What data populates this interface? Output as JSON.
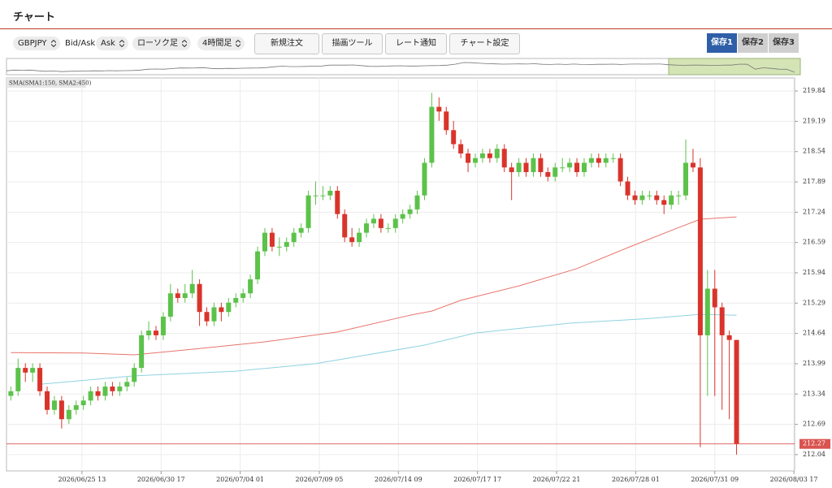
{
  "header": {
    "title": "チャート"
  },
  "toolbar": {
    "symbol": "GBPJPY",
    "price_side_label": "Bid/Ask",
    "price_side": "Ask",
    "chart_kind": "ローソク足",
    "timeframe": "4時間足",
    "buttons": [
      "新規注文",
      "描画ツール",
      "レート通知",
      "チャート設定"
    ],
    "saves": [
      "保存1",
      "保存2",
      "保存3"
    ],
    "active_save": 0
  },
  "chart_data": {
    "type": "candlestick",
    "indicator_label": "SMA(SMA1:150, SMA2:450)",
    "up_color": "#5cc24a",
    "down_color": "#d9342b",
    "grid": true,
    "last_price": 212.27,
    "last_price_color": "#d9534f",
    "ylim": [
      211.69,
      220.12
    ],
    "yticks": [
      212.04,
      212.69,
      213.34,
      213.99,
      214.64,
      215.29,
      215.94,
      216.59,
      217.24,
      217.89,
      218.54,
      219.19,
      219.84
    ],
    "xlim": [
      -0.1,
      108.5
    ],
    "xticks": [
      {
        "value": 10.3,
        "label": "2026/06/25 13"
      },
      {
        "value": 21.2,
        "label": "2026/06/30 17"
      },
      {
        "value": 32.1,
        "label": "2026/07/04 01"
      },
      {
        "value": 43,
        "label": "2026/07/09 05"
      },
      {
        "value": 53.9,
        "label": "2026/07/14 09"
      },
      {
        "value": 64.8,
        "label": "2026/07/17 17"
      },
      {
        "value": 75.7,
        "label": "2026/07/22 21"
      },
      {
        "value": 86.6,
        "label": "2026/07/28 01"
      },
      {
        "value": 97.5,
        "label": "2026/07/31 09"
      },
      {
        "value": 108.4,
        "label": "2026/08/03 17"
      }
    ],
    "candles": [
      [
        213.3,
        213.5,
        213.2,
        213.4
      ],
      [
        213.4,
        214.1,
        213.3,
        213.9
      ],
      [
        213.9,
        214.0,
        213.6,
        213.8
      ],
      [
        213.8,
        214.0,
        213.6,
        213.9
      ],
      [
        213.9,
        214.0,
        213.3,
        213.4
      ],
      [
        213.4,
        213.5,
        212.9,
        213.0
      ],
      [
        213.0,
        213.3,
        212.9,
        213.2
      ],
      [
        213.2,
        213.3,
        212.6,
        212.8
      ],
      [
        212.8,
        213.1,
        212.7,
        213.0
      ],
      [
        213.0,
        213.2,
        212.9,
        213.1
      ],
      [
        213.1,
        213.3,
        213.0,
        213.2
      ],
      [
        213.2,
        213.5,
        213.1,
        213.4
      ],
      [
        213.4,
        213.5,
        213.2,
        213.3
      ],
      [
        213.3,
        213.6,
        213.2,
        213.5
      ],
      [
        213.5,
        213.6,
        213.3,
        213.4
      ],
      [
        213.4,
        213.6,
        213.3,
        213.5
      ],
      [
        213.5,
        213.7,
        213.4,
        213.6
      ],
      [
        213.6,
        214.0,
        213.5,
        213.9
      ],
      [
        213.9,
        214.7,
        213.8,
        214.6
      ],
      [
        214.6,
        214.9,
        214.5,
        214.7
      ],
      [
        214.7,
        214.8,
        214.5,
        214.6
      ],
      [
        214.6,
        215.1,
        214.5,
        215.0
      ],
      [
        215.0,
        215.7,
        214.9,
        215.5
      ],
      [
        215.5,
        215.6,
        215.3,
        215.4
      ],
      [
        215.4,
        215.7,
        215.3,
        215.5
      ],
      [
        215.5,
        216.0,
        215.4,
        215.7
      ],
      [
        215.7,
        215.8,
        214.8,
        215.1
      ],
      [
        215.1,
        215.2,
        214.8,
        214.9
      ],
      [
        214.9,
        215.3,
        214.8,
        215.2
      ],
      [
        215.2,
        215.3,
        214.9,
        215.1
      ],
      [
        215.1,
        215.4,
        215.0,
        215.3
      ],
      [
        215.3,
        215.5,
        215.2,
        215.4
      ],
      [
        215.4,
        215.6,
        215.3,
        215.5
      ],
      [
        215.5,
        215.9,
        215.4,
        215.8
      ],
      [
        215.8,
        216.5,
        215.7,
        216.4
      ],
      [
        216.4,
        216.9,
        216.3,
        216.8
      ],
      [
        216.8,
        216.9,
        216.4,
        216.5
      ],
      [
        216.5,
        216.7,
        216.3,
        216.5
      ],
      [
        216.5,
        216.7,
        216.4,
        216.6
      ],
      [
        216.6,
        216.9,
        216.5,
        216.8
      ],
      [
        216.8,
        217.0,
        216.7,
        216.9
      ],
      [
        216.9,
        217.7,
        216.8,
        217.6
      ],
      [
        217.6,
        217.9,
        217.4,
        217.6
      ],
      [
        217.6,
        217.8,
        217.5,
        217.6
      ],
      [
        217.6,
        217.8,
        217.5,
        217.7
      ],
      [
        217.7,
        217.8,
        217.1,
        217.2
      ],
      [
        217.2,
        217.3,
        216.6,
        216.7
      ],
      [
        216.7,
        216.9,
        216.5,
        216.6
      ],
      [
        216.6,
        216.9,
        216.5,
        216.8
      ],
      [
        216.8,
        217.1,
        216.7,
        217.0
      ],
      [
        217.0,
        217.2,
        216.9,
        217.1
      ],
      [
        217.1,
        217.2,
        216.8,
        216.9
      ],
      [
        216.9,
        217.0,
        216.8,
        216.9
      ],
      [
        216.9,
        217.2,
        216.8,
        217.1
      ],
      [
        217.1,
        217.3,
        217.0,
        217.2
      ],
      [
        217.2,
        217.4,
        217.1,
        217.3
      ],
      [
        217.3,
        217.7,
        217.2,
        217.6
      ],
      [
        217.6,
        218.4,
        217.5,
        218.3
      ],
      [
        218.3,
        219.8,
        218.2,
        219.5
      ],
      [
        219.5,
        219.7,
        219.2,
        219.4
      ],
      [
        219.4,
        219.5,
        218.9,
        219.0
      ],
      [
        219.0,
        219.2,
        218.6,
        218.7
      ],
      [
        218.7,
        218.8,
        218.4,
        218.5
      ],
      [
        218.5,
        218.6,
        218.1,
        218.3
      ],
      [
        218.3,
        218.5,
        218.2,
        218.4
      ],
      [
        218.4,
        218.6,
        218.3,
        218.5
      ],
      [
        218.5,
        218.6,
        218.3,
        218.4
      ],
      [
        218.4,
        218.7,
        218.3,
        218.6
      ],
      [
        218.6,
        218.7,
        218.1,
        218.2
      ],
      [
        218.2,
        218.3,
        217.5,
        218.1
      ],
      [
        218.1,
        218.4,
        218.0,
        218.3
      ],
      [
        218.3,
        218.4,
        218.0,
        218.1
      ],
      [
        218.1,
        218.5,
        218.0,
        218.4
      ],
      [
        218.4,
        218.5,
        218.0,
        218.1
      ],
      [
        218.1,
        218.2,
        217.9,
        218.0
      ],
      [
        218.0,
        218.3,
        217.9,
        218.2
      ],
      [
        218.2,
        218.4,
        218.1,
        218.2
      ],
      [
        218.2,
        218.4,
        218.1,
        218.3
      ],
      [
        218.3,
        218.4,
        218.0,
        218.1
      ],
      [
        218.1,
        218.4,
        218.0,
        218.3
      ],
      [
        218.3,
        218.5,
        218.2,
        218.4
      ],
      [
        218.4,
        218.5,
        218.2,
        218.3
      ],
      [
        218.3,
        218.5,
        218.2,
        218.4
      ],
      [
        218.4,
        218.5,
        218.3,
        218.4
      ],
      [
        218.4,
        218.5,
        217.8,
        217.9
      ],
      [
        217.9,
        218.0,
        217.5,
        217.6
      ],
      [
        217.6,
        217.7,
        217.4,
        217.5
      ],
      [
        217.5,
        217.7,
        217.4,
        217.6
      ],
      [
        217.6,
        217.7,
        217.5,
        217.6
      ],
      [
        217.6,
        217.7,
        217.4,
        217.5
      ],
      [
        217.5,
        217.6,
        217.2,
        217.4
      ],
      [
        217.4,
        217.7,
        217.3,
        217.6
      ],
      [
        217.6,
        217.7,
        217.4,
        217.6
      ],
      [
        217.6,
        218.8,
        217.5,
        218.3
      ],
      [
        218.3,
        218.6,
        218.1,
        218.2
      ],
      [
        218.2,
        218.4,
        212.2,
        214.6
      ],
      [
        214.6,
        216.0,
        213.3,
        215.6
      ],
      [
        215.6,
        216.0,
        213.3,
        215.2
      ],
      [
        215.2,
        215.3,
        213.0,
        214.6
      ],
      [
        214.6,
        214.7,
        212.8,
        214.5
      ],
      [
        214.5,
        214.5,
        212.04,
        212.27
      ]
    ],
    "sma": [
      {
        "color": "#e8736b",
        "x": [
          0,
          10,
          17,
          25,
          35,
          45,
          55,
          58,
          62,
          70,
          78,
          85,
          92,
          95,
          100
        ],
        "values": [
          214.23,
          214.22,
          214.18,
          214.3,
          214.46,
          214.67,
          215.03,
          215.12,
          215.35,
          215.66,
          216.03,
          216.48,
          216.91,
          217.09,
          217.14
        ]
      },
      {
        "color": "#8fd3e0",
        "x": [
          4,
          17,
          31,
          42,
          57,
          64,
          77,
          88,
          95,
          100
        ],
        "values": [
          213.55,
          213.73,
          213.83,
          213.99,
          214.39,
          214.65,
          214.86,
          214.96,
          215.05,
          215.03
        ]
      }
    ]
  }
}
